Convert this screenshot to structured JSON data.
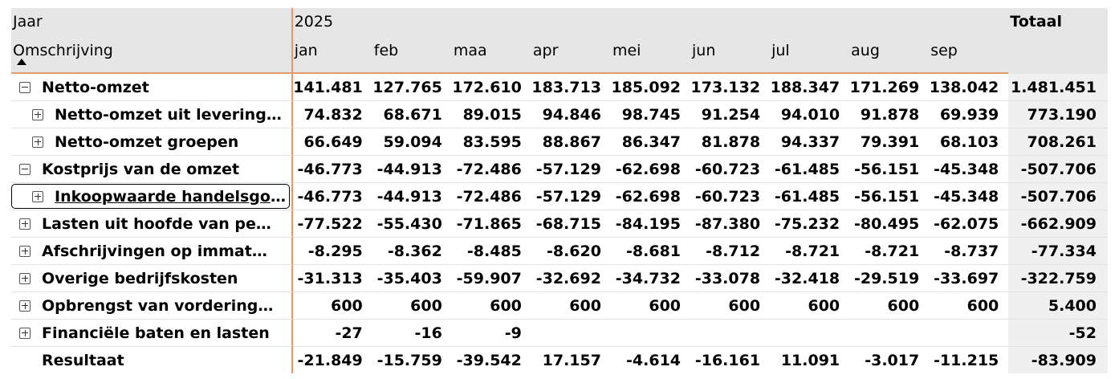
{
  "header": {
    "row1_label": "Jaar",
    "year": "2025",
    "total_label": "Totaal",
    "row2_label": "Omschrijving",
    "months": [
      "jan",
      "feb",
      "maa",
      "apr",
      "mei",
      "jun",
      "jul",
      "aug",
      "sep"
    ]
  },
  "rows": [
    {
      "label": "Netto-omzet",
      "expander": "minus",
      "level": 0,
      "values": [
        "141.481",
        "127.765",
        "172.610",
        "183.713",
        "185.092",
        "173.132",
        "188.347",
        "171.269",
        "138.042"
      ],
      "total": "1.481.451"
    },
    {
      "label": "Netto-omzet uit leveringe…",
      "expander": "plus",
      "level": 1,
      "values": [
        "74.832",
        "68.671",
        "89.015",
        "94.846",
        "98.745",
        "91.254",
        "94.010",
        "91.878",
        "69.939"
      ],
      "total": "773.190"
    },
    {
      "label": "Netto-omzet groepen",
      "expander": "plus",
      "level": 1,
      "values": [
        "66.649",
        "59.094",
        "83.595",
        "88.867",
        "86.347",
        "81.878",
        "94.337",
        "79.391",
        "68.103"
      ],
      "total": "708.261"
    },
    {
      "label": "Kostprijs van de omzet",
      "expander": "minus",
      "level": 0,
      "values": [
        "-46.773",
        "-44.913",
        "-72.486",
        "-57.129",
        "-62.698",
        "-60.723",
        "-61.485",
        "-56.151",
        "-45.348"
      ],
      "total": "-507.706"
    },
    {
      "label": "Inkoopwaarde handelsgoe…",
      "expander": "plus",
      "level": 1,
      "focused": true,
      "values": [
        "-46.773",
        "-44.913",
        "-72.486",
        "-57.129",
        "-62.698",
        "-60.723",
        "-61.485",
        "-56.151",
        "-45.348"
      ],
      "total": "-507.706"
    },
    {
      "label": "Lasten uit hoofde van perso…",
      "expander": "plus",
      "level": 0,
      "values": [
        "-77.522",
        "-55.430",
        "-71.865",
        "-68.715",
        "-84.195",
        "-87.380",
        "-75.232",
        "-80.495",
        "-62.075"
      ],
      "total": "-662.909"
    },
    {
      "label": "Afschrijvingen op immateri…",
      "expander": "plus",
      "level": 0,
      "values": [
        "-8.295",
        "-8.362",
        "-8.485",
        "-8.620",
        "-8.681",
        "-8.712",
        "-8.721",
        "-8.721",
        "-8.737"
      ],
      "total": "-77.334"
    },
    {
      "label": "Overige bedrijfskosten",
      "expander": "plus",
      "level": 0,
      "values": [
        "-31.313",
        "-35.403",
        "-59.907",
        "-32.692",
        "-34.732",
        "-33.078",
        "-32.418",
        "-29.519",
        "-33.697"
      ],
      "total": "-322.759"
    },
    {
      "label": "Opbrengst van vorderingen …",
      "expander": "plus",
      "level": 0,
      "values": [
        "600",
        "600",
        "600",
        "600",
        "600",
        "600",
        "600",
        "600",
        "600"
      ],
      "total": "5.400"
    },
    {
      "label": "Financiële baten en lasten",
      "expander": "plus",
      "level": 0,
      "values": [
        "-27",
        "-16",
        "-9",
        "",
        "",
        "",
        "",
        "",
        ""
      ],
      "total": "-52"
    },
    {
      "label": "Resultaat",
      "expander": "none",
      "level": 0,
      "values": [
        "-21.849",
        "-15.759",
        "-39.542",
        "17.157",
        "-4.614",
        "-16.161",
        "11.091",
        "-3.017",
        "-11.215"
      ],
      "total": "-83.909"
    }
  ]
}
